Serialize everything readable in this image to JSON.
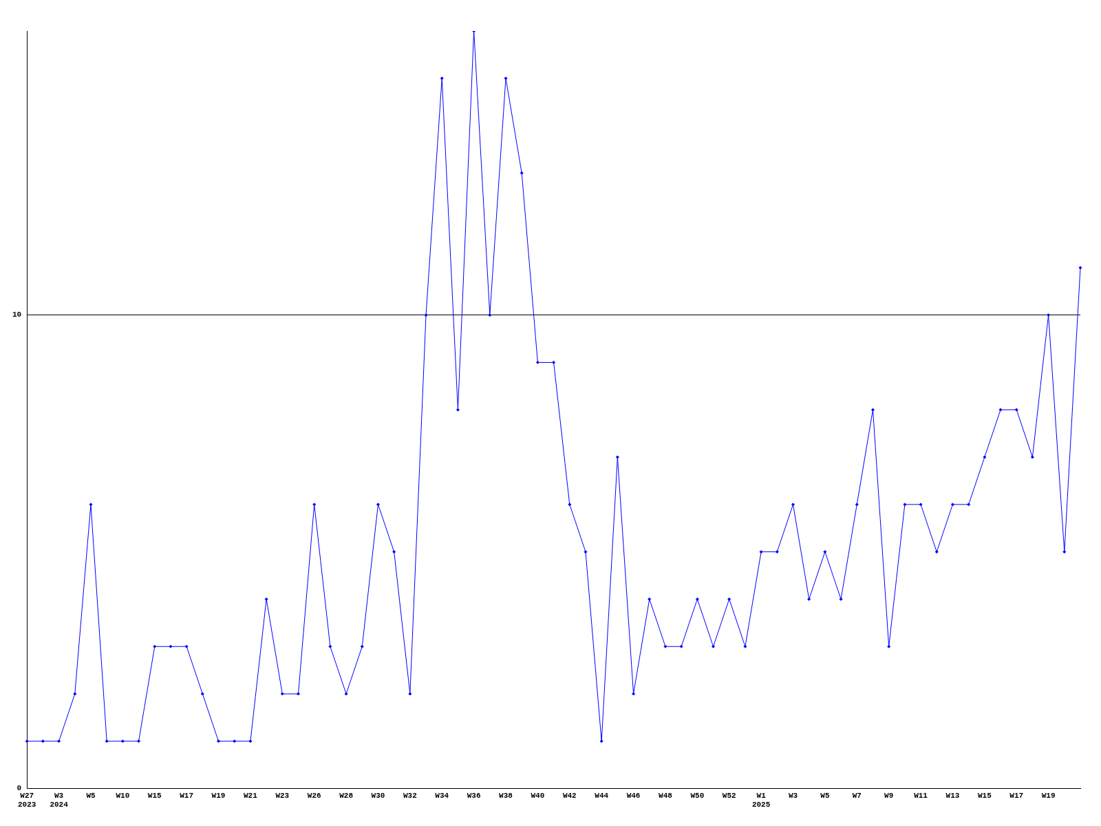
{
  "chart_data": {
    "type": "line",
    "categories": [
      "W27\n2023",
      null,
      "W3\n2024",
      null,
      "W5",
      null,
      "W10",
      null,
      "W15",
      null,
      "W17",
      null,
      "W19",
      null,
      "W21",
      null,
      "W23",
      null,
      "W26",
      null,
      "W28",
      null,
      "W30",
      null,
      "W32",
      null,
      "W34",
      null,
      "W36",
      null,
      "W38",
      null,
      "W40",
      null,
      "W42",
      null,
      "W44",
      null,
      "W46",
      null,
      "W48",
      null,
      "W50",
      null,
      "W52",
      null,
      "W1\n2025",
      null,
      "W3",
      null,
      "W5",
      null,
      "W7",
      null,
      "W9",
      null,
      "W11",
      null,
      "W13",
      null,
      "W15",
      null,
      "W17",
      null,
      "W19",
      null,
      null
    ],
    "series": [
      {
        "color": "#0000ff",
        "values": [
          1,
          1,
          1,
          2,
          6,
          1,
          1,
          1,
          3,
          3,
          3,
          2,
          1,
          1,
          1,
          4,
          2,
          2,
          6,
          3,
          2,
          3,
          6,
          5,
          2,
          10,
          15,
          8,
          16,
          10,
          15,
          13,
          9,
          9,
          6,
          5,
          1,
          7,
          2,
          4,
          3,
          3,
          4,
          3,
          4,
          3,
          5,
          5,
          6,
          4,
          5,
          4,
          6,
          8,
          3,
          6,
          6,
          5,
          6,
          6,
          7,
          8,
          8,
          7,
          10,
          5,
          11
        ]
      }
    ],
    "ylim": [
      0,
      16
    ],
    "yticks": [
      0,
      10
    ],
    "grid": "y",
    "legend": false,
    "marker": "diamond",
    "line_style": "solid"
  }
}
